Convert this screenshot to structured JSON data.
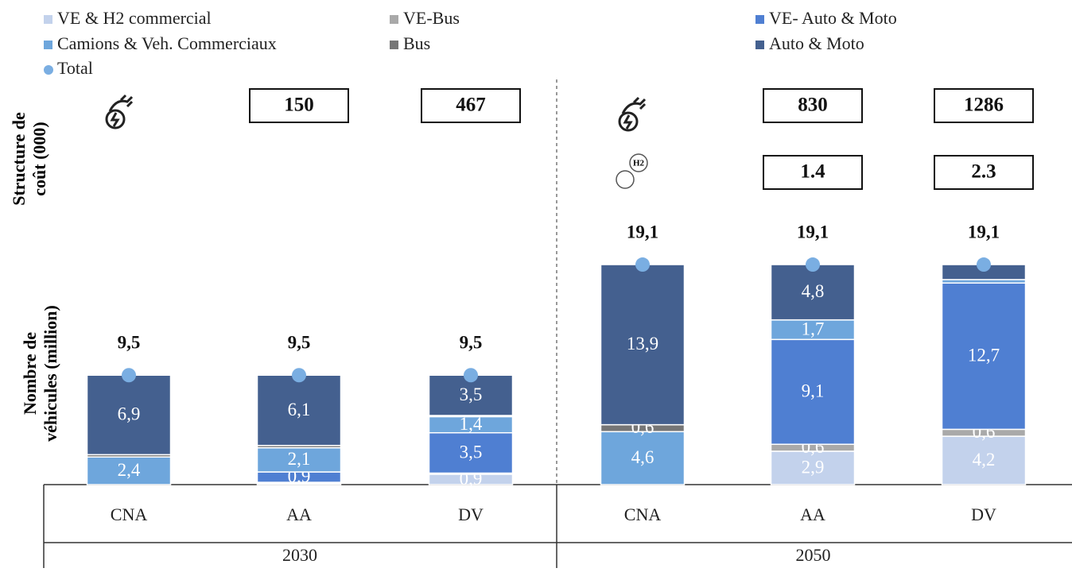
{
  "chart_data": {
    "type": "stacked_bar",
    "y_axis_label_top": [
      "Structure de",
      "coût (000)"
    ],
    "y_axis_label_bottom": [
      "Nombre de",
      "véhicules (million)"
    ],
    "categories": [
      "CNA",
      "AA",
      "DV",
      "CNA",
      "AA",
      "DV"
    ],
    "groups": [
      "2030",
      "2050"
    ],
    "ylim": [
      0,
      20
    ],
    "series": [
      {
        "name": "VE & H2 commercial",
        "color": "#c3d2ec",
        "values": [
          0,
          0.1,
          0.9,
          0,
          2.9,
          4.2
        ],
        "value_labels": [
          null,
          null,
          "0,9",
          null,
          "2,9",
          "4,2"
        ]
      },
      {
        "name": "VE-Bus",
        "color": "#a9a9a9",
        "values": [
          0,
          0.1,
          0.1,
          0,
          0.6,
          0.6
        ],
        "value_labels": [
          null,
          null,
          null,
          null,
          "0,6",
          "0,6"
        ]
      },
      {
        "name": "VE- Auto & Moto",
        "color": "#4f7fd2",
        "values": [
          0,
          0.9,
          3.5,
          0,
          9.1,
          12.7
        ],
        "value_labels": [
          null,
          "0,9",
          "3,5",
          null,
          "9,1",
          "12,7"
        ]
      },
      {
        "name": "Camions & Veh. Commerciaux",
        "color": "#6ea6dc",
        "values": [
          2.4,
          2.1,
          1.4,
          4.6,
          1.7,
          0.3
        ],
        "value_labels": [
          "2,4",
          "2,1",
          "1,4",
          "4,6",
          "1,7",
          null
        ]
      },
      {
        "name": "Bus",
        "color": "#767676",
        "values": [
          0.2,
          0.2,
          0.1,
          0.6,
          0,
          0
        ],
        "value_labels": [
          null,
          null,
          null,
          "0,6",
          null,
          null
        ]
      },
      {
        "name": "Auto & Moto",
        "color": "#44608f",
        "values": [
          6.9,
          6.1,
          3.5,
          13.9,
          4.8,
          1.3
        ],
        "value_labels": [
          "6,9",
          "6,1",
          "3,5",
          "13,9",
          "4,8",
          null
        ]
      }
    ],
    "total": {
      "name": "Total",
      "color": "#7aaee2",
      "values": [
        9.5,
        9.5,
        9.5,
        19.1,
        19.1,
        19.1
      ],
      "value_labels": [
        "9,5",
        "9,5",
        "9,5",
        "19,1",
        "19,1",
        "19,1"
      ]
    },
    "cost_electric": [
      null,
      150,
      467,
      null,
      830,
      1286
    ],
    "cost_hydrogen": [
      null,
      null,
      null,
      null,
      1.4,
      2.3
    ],
    "h2_icon_label": "H2"
  }
}
